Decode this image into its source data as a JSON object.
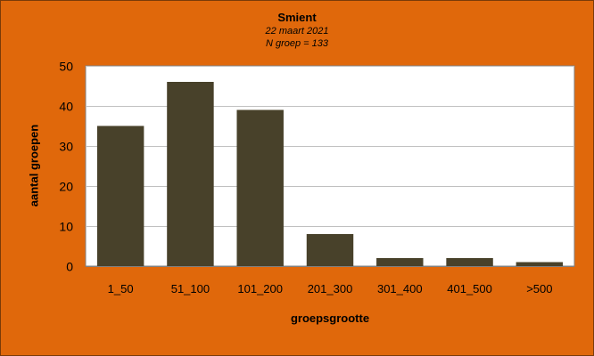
{
  "chart_data": {
    "type": "bar",
    "title": "Smient",
    "subtitle_lines": [
      "22 maart 2021",
      "N groep = 133"
    ],
    "xlabel": "groepsgrootte",
    "ylabel": "aantal groepen",
    "categories": [
      "1_50",
      "51_100",
      "101_200",
      "201_300",
      "301_400",
      "401_500",
      ">500"
    ],
    "values": [
      35,
      46,
      39,
      8,
      2,
      2,
      1
    ],
    "ylim": [
      0,
      50
    ],
    "yticks": [
      "0",
      "10",
      "20",
      "30",
      "40",
      "50"
    ],
    "grid": true,
    "legend": "none",
    "colors": {
      "background": "#e0680b",
      "plot_area": "#ffffff",
      "bar": "#48412a",
      "gridline": "#c0c0c0"
    }
  }
}
